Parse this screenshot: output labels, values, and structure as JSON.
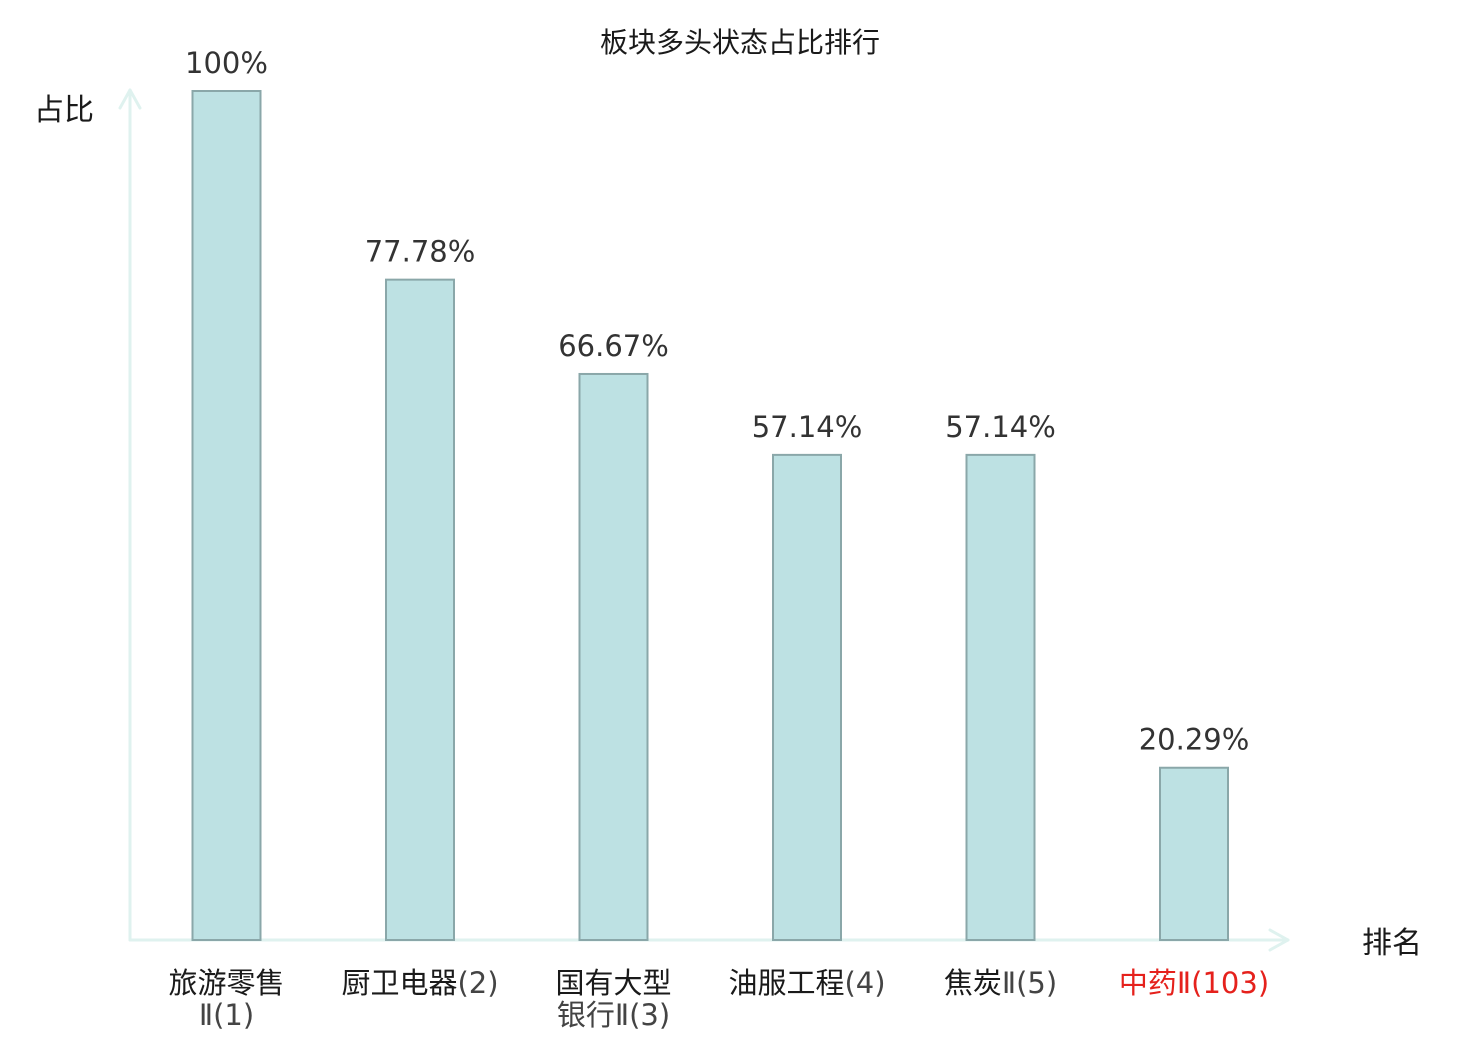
{
  "chart_data": {
    "type": "bar",
    "title": "板块多头状态占比排行",
    "ylabel": "占比",
    "xlabel": "排名",
    "ylim": [
      0,
      100
    ],
    "grid": false,
    "categories": [
      {
        "name": "旅游零售",
        "rank": "Ⅱ(1)",
        "highlight": false
      },
      {
        "name": "厨卫电器",
        "rank": "(2)",
        "highlight": false
      },
      {
        "name": "国有大型",
        "rank": "银行Ⅱ(3)",
        "highlight": false
      },
      {
        "name": "油服工程",
        "rank": "(4)",
        "highlight": false
      },
      {
        "name": "焦炭",
        "rank": "Ⅱ(5)",
        "highlight": false
      },
      {
        "name": "中药",
        "rank": "Ⅱ(103)",
        "highlight": true
      }
    ],
    "values": [
      100,
      77.78,
      66.67,
      57.14,
      57.14,
      20.29
    ],
    "value_labels": [
      "100%",
      "77.78%",
      "66.67%",
      "57.14%",
      "57.14%",
      "20.29%"
    ],
    "colors": {
      "bar_fill": "#bde1e3",
      "bar_stroke": "#8aa7a9",
      "axis": "#dff2ef",
      "text": "#1a1a1a",
      "value_text": "#333333",
      "rank_text": "#444444",
      "highlight": "#e5211c"
    }
  }
}
